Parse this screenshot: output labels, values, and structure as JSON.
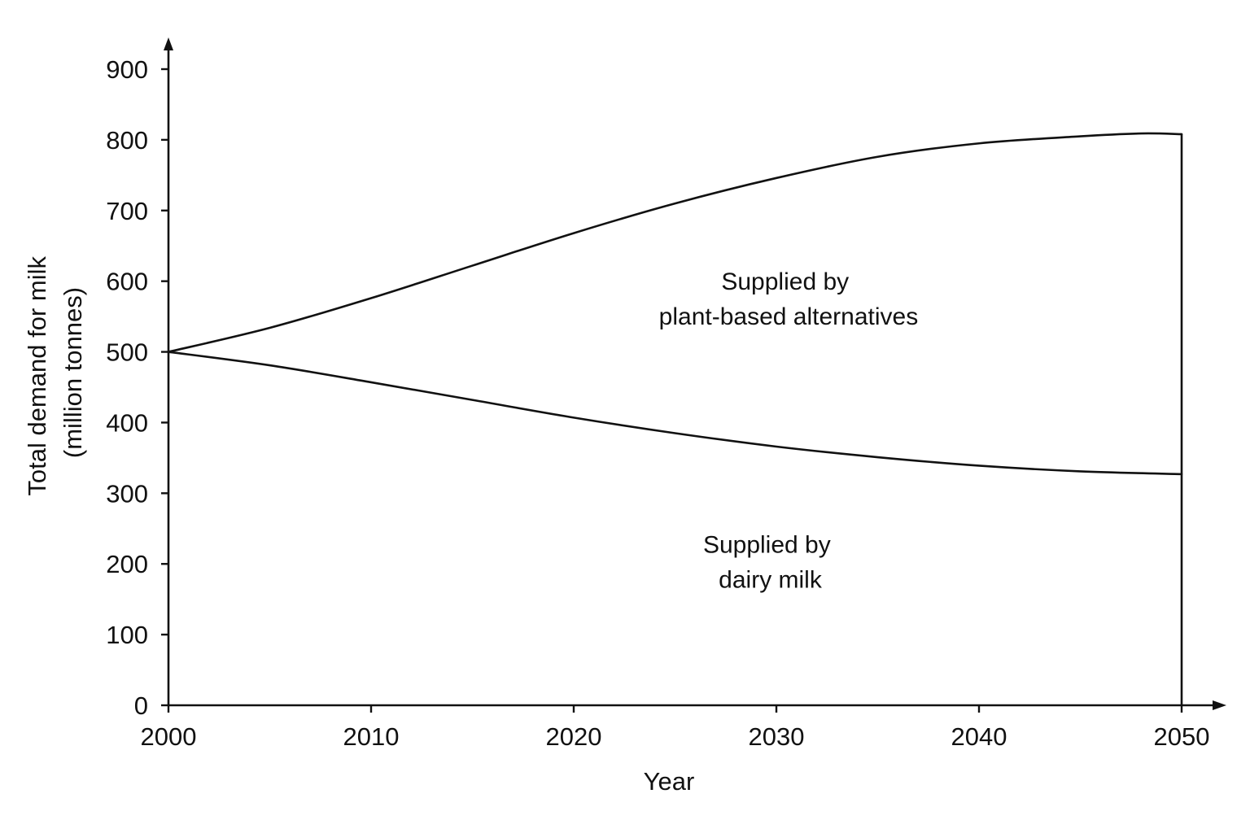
{
  "chart_data": {
    "type": "line",
    "title": "",
    "xlabel": "Year",
    "ylabel_lines": [
      "Total demand for milk",
      "(million tonnes)"
    ],
    "xlim": [
      2000,
      2050
    ],
    "ylim": [
      0,
      900
    ],
    "xticks": [
      2000,
      2010,
      2020,
      2030,
      2040,
      2050
    ],
    "yticks": [
      0,
      100,
      200,
      300,
      400,
      500,
      600,
      700,
      800,
      900
    ],
    "grid": false,
    "legend": "none",
    "series": [
      {
        "x": [
          2000,
          2005,
          2010,
          2015,
          2020,
          2025,
          2030,
          2035,
          2040,
          2045,
          2048,
          2050
        ],
        "values": [
          500,
          534,
          576,
          622,
          668,
          710,
          746,
          776,
          795,
          805,
          809,
          808
        ]
      },
      {
        "x": [
          2000,
          2005,
          2010,
          2015,
          2020,
          2025,
          2030,
          2035,
          2040,
          2045,
          2050
        ],
        "values": [
          500,
          481,
          457,
          432,
          407,
          385,
          366,
          351,
          339,
          331,
          327
        ]
      }
    ],
    "annotations": [
      {
        "lines": [
          "Supplied by",
          "plant-based alternatives"
        ],
        "x": 2030.6,
        "y": 580
      },
      {
        "lines": [
          "Supplied by",
          "dairy milk"
        ],
        "x": 2029.7,
        "y": 208
      }
    ]
  },
  "colors": {
    "ink": "#111111",
    "background": "#ffffff"
  }
}
